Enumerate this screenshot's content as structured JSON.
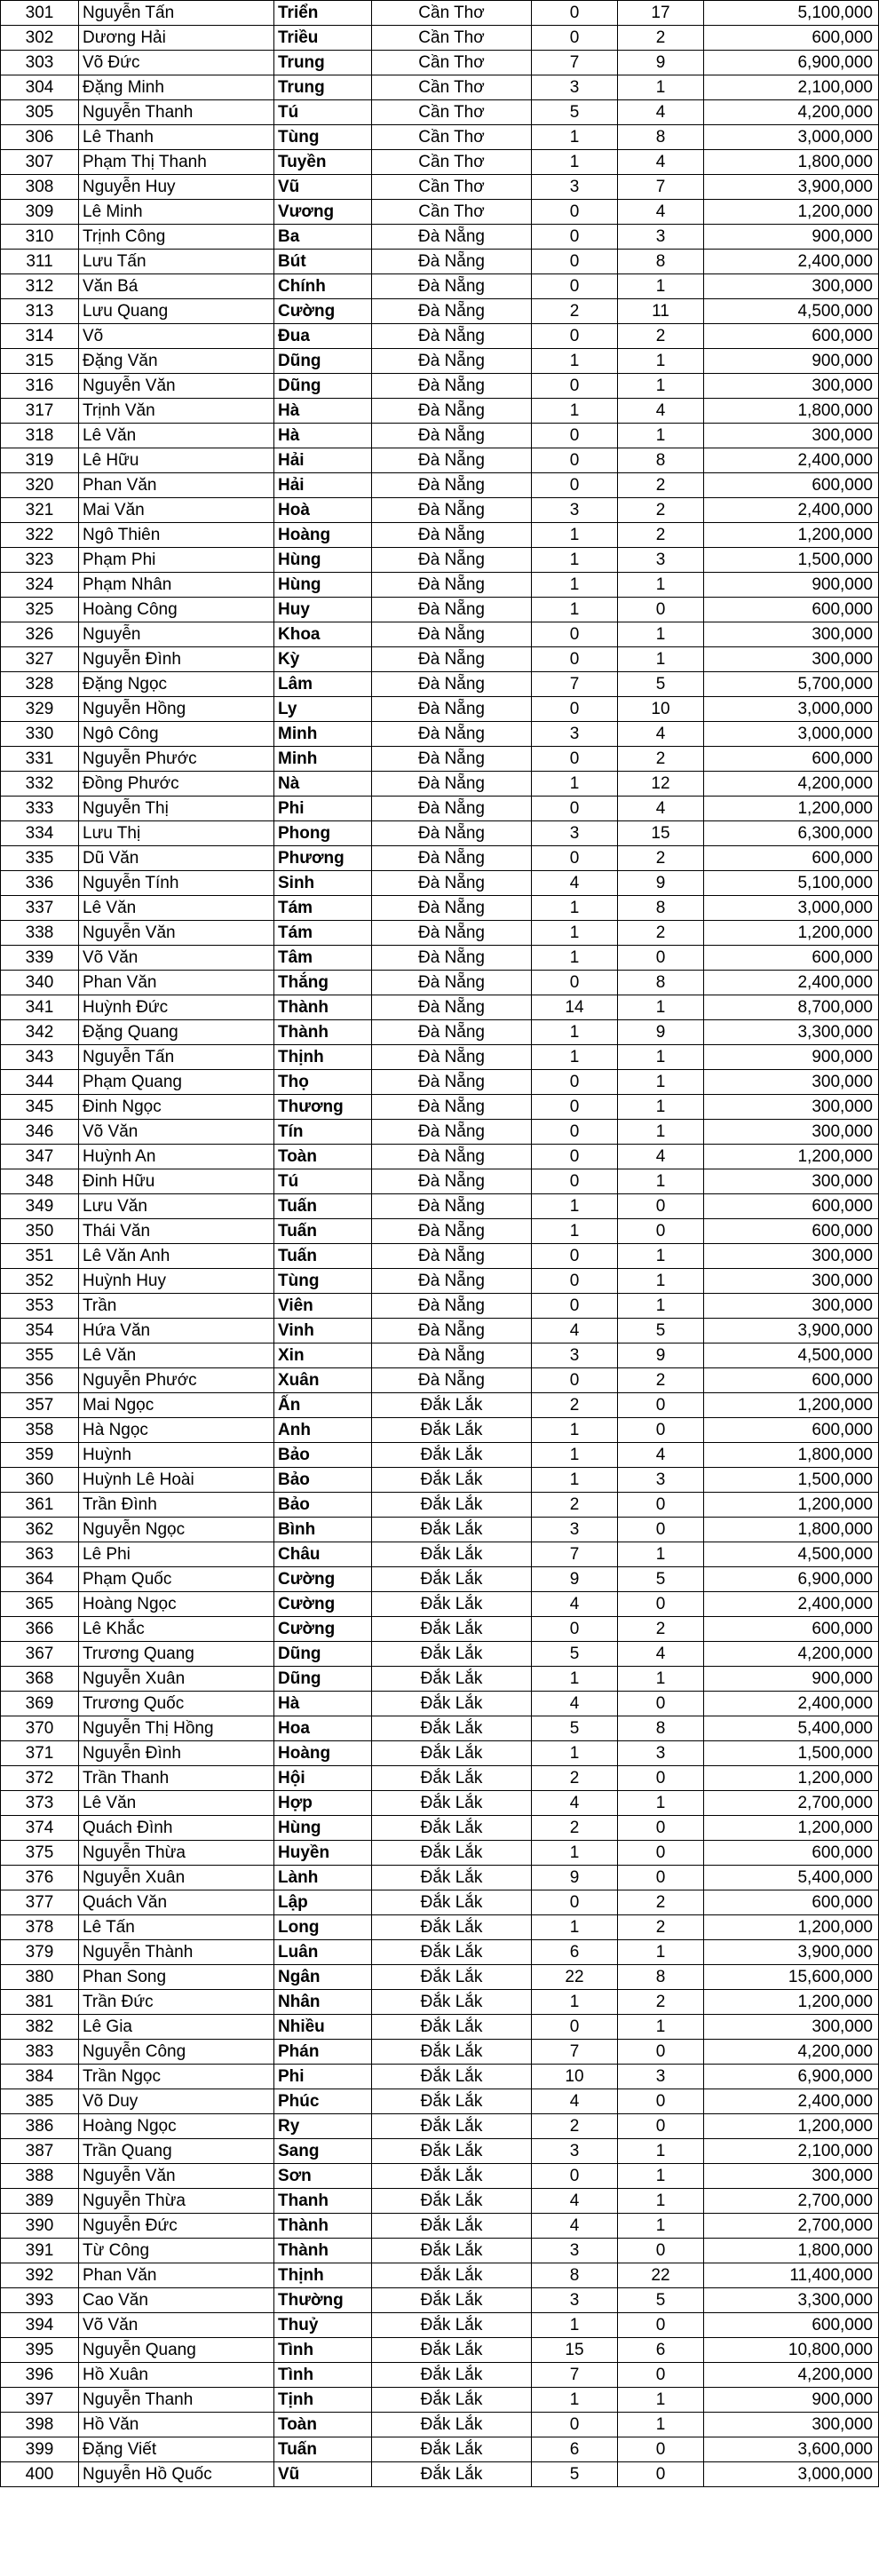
{
  "rows": [
    [
      "301",
      "Nguyễn Tấn",
      "Triển",
      "Cần Thơ",
      "0",
      "17",
      "5,100,000"
    ],
    [
      "302",
      "Dương Hải",
      "Triều",
      "Cần Thơ",
      "0",
      "2",
      "600,000"
    ],
    [
      "303",
      "Võ Đức",
      "Trung",
      "Cần Thơ",
      "7",
      "9",
      "6,900,000"
    ],
    [
      "304",
      "Đặng Minh",
      "Trung",
      "Cần Thơ",
      "3",
      "1",
      "2,100,000"
    ],
    [
      "305",
      "Nguyễn Thanh",
      "Tú",
      "Cần Thơ",
      "5",
      "4",
      "4,200,000"
    ],
    [
      "306",
      "Lê Thanh",
      "Tùng",
      "Cần Thơ",
      "1",
      "8",
      "3,000,000"
    ],
    [
      "307",
      "Phạm Thị Thanh",
      "Tuyền",
      "Cần Thơ",
      "1",
      "4",
      "1,800,000"
    ],
    [
      "308",
      "Nguyễn Huy",
      "Vũ",
      "Cần Thơ",
      "3",
      "7",
      "3,900,000"
    ],
    [
      "309",
      "Lê Minh",
      "Vương",
      "Cần Thơ",
      "0",
      "4",
      "1,200,000"
    ],
    [
      "310",
      "Trịnh Công",
      "Ba",
      "Đà Nẵng",
      "0",
      "3",
      "900,000"
    ],
    [
      "311",
      "Lưu Tấn",
      "Bút",
      "Đà Nẵng",
      "0",
      "8",
      "2,400,000"
    ],
    [
      "312",
      "Văn Bá",
      "Chính",
      "Đà Nẵng",
      "0",
      "1",
      "300,000"
    ],
    [
      "313",
      "Lưu Quang",
      "Cường",
      "Đà Nẵng",
      "2",
      "11",
      "4,500,000"
    ],
    [
      "314",
      "Võ",
      "Đua",
      "Đà Nẵng",
      "0",
      "2",
      "600,000"
    ],
    [
      "315",
      "Đặng Văn",
      "Dũng",
      "Đà Nẵng",
      "1",
      "1",
      "900,000"
    ],
    [
      "316",
      "Nguyễn Văn",
      "Dũng",
      "Đà Nẵng",
      "0",
      "1",
      "300,000"
    ],
    [
      "317",
      "Trịnh Văn",
      "Hà",
      "Đà Nẵng",
      "1",
      "4",
      "1,800,000"
    ],
    [
      "318",
      "Lê Văn",
      "Hà",
      "Đà Nẵng",
      "0",
      "1",
      "300,000"
    ],
    [
      "319",
      "Lê Hữu",
      "Hải",
      "Đà Nẵng",
      "0",
      "8",
      "2,400,000"
    ],
    [
      "320",
      "Phan Văn",
      "Hải",
      "Đà Nẵng",
      "0",
      "2",
      "600,000"
    ],
    [
      "321",
      "Mai Văn",
      "Hoà",
      "Đà Nẵng",
      "3",
      "2",
      "2,400,000"
    ],
    [
      "322",
      "Ngô Thiên",
      "Hoàng",
      "Đà Nẵng",
      "1",
      "2",
      "1,200,000"
    ],
    [
      "323",
      "Phạm Phi",
      "Hùng",
      "Đà Nẵng",
      "1",
      "3",
      "1,500,000"
    ],
    [
      "324",
      "Phạm Nhân",
      "Hùng",
      "Đà Nẵng",
      "1",
      "1",
      "900,000"
    ],
    [
      "325",
      "Hoàng Công",
      "Huy",
      "Đà Nẵng",
      "1",
      "0",
      "600,000"
    ],
    [
      "326",
      "Nguyễn",
      "Khoa",
      "Đà Nẵng",
      "0",
      "1",
      "300,000"
    ],
    [
      "327",
      "Nguyễn Đình",
      "Kỳ",
      "Đà Nẵng",
      "0",
      "1",
      "300,000"
    ],
    [
      "328",
      "Đặng Ngọc",
      "Lâm",
      "Đà Nẵng",
      "7",
      "5",
      "5,700,000"
    ],
    [
      "329",
      "Nguyễn Hồng",
      "Ly",
      "Đà Nẵng",
      "0",
      "10",
      "3,000,000"
    ],
    [
      "330",
      "Ngô Công",
      "Minh",
      "Đà Nẵng",
      "3",
      "4",
      "3,000,000"
    ],
    [
      "331",
      "Nguyễn Phước",
      "Minh",
      "Đà Nẵng",
      "0",
      "2",
      "600,000"
    ],
    [
      "332",
      "Đồng Phước",
      "Nà",
      "Đà Nẵng",
      "1",
      "12",
      "4,200,000"
    ],
    [
      "333",
      "Nguyễn Thị",
      "Phi",
      "Đà Nẵng",
      "0",
      "4",
      "1,200,000"
    ],
    [
      "334",
      "Lưu Thị",
      "Phong",
      "Đà Nẵng",
      "3",
      "15",
      "6,300,000"
    ],
    [
      "335",
      "Dũ Văn",
      "Phương",
      "Đà Nẵng",
      "0",
      "2",
      "600,000"
    ],
    [
      "336",
      "Nguyễn Tính",
      "Sinh",
      "Đà Nẵng",
      "4",
      "9",
      "5,100,000"
    ],
    [
      "337",
      "Lê Văn",
      "Tám",
      "Đà Nẵng",
      "1",
      "8",
      "3,000,000"
    ],
    [
      "338",
      "Nguyễn Văn",
      "Tám",
      "Đà Nẵng",
      "1",
      "2",
      "1,200,000"
    ],
    [
      "339",
      "Võ Văn",
      "Tâm",
      "Đà Nẵng",
      "1",
      "0",
      "600,000"
    ],
    [
      "340",
      "Phan Văn",
      "Thắng",
      "Đà Nẵng",
      "0",
      "8",
      "2,400,000"
    ],
    [
      "341",
      "Huỳnh Đức",
      "Thành",
      "Đà Nẵng",
      "14",
      "1",
      "8,700,000"
    ],
    [
      "342",
      "Đặng Quang",
      "Thành",
      "Đà Nẵng",
      "1",
      "9",
      "3,300,000"
    ],
    [
      "343",
      "Nguyễn Tấn",
      "Thịnh",
      "Đà Nẵng",
      "1",
      "1",
      "900,000"
    ],
    [
      "344",
      "Phạm Quang",
      "Thọ",
      "Đà Nẵng",
      "0",
      "1",
      "300,000"
    ],
    [
      "345",
      "Đinh Ngọc",
      "Thương",
      "Đà Nẵng",
      "0",
      "1",
      "300,000"
    ],
    [
      "346",
      "Võ Văn",
      "Tín",
      "Đà Nẵng",
      "0",
      "1",
      "300,000"
    ],
    [
      "347",
      "Huỳnh An",
      "Toàn",
      "Đà Nẵng",
      "0",
      "4",
      "1,200,000"
    ],
    [
      "348",
      "Đinh Hữu",
      "Tú",
      "Đà Nẵng",
      "0",
      "1",
      "300,000"
    ],
    [
      "349",
      "Lưu Văn",
      "Tuấn",
      "Đà Nẵng",
      "1",
      "0",
      "600,000"
    ],
    [
      "350",
      "Thái Văn",
      "Tuấn",
      "Đà Nẵng",
      "1",
      "0",
      "600,000"
    ],
    [
      "351",
      "Lê Văn Anh",
      "Tuấn",
      "Đà Nẵng",
      "0",
      "1",
      "300,000"
    ],
    [
      "352",
      "Huỳnh Huy",
      "Tùng",
      "Đà Nẵng",
      "0",
      "1",
      "300,000"
    ],
    [
      "353",
      "Trần",
      "Viên",
      "Đà Nẵng",
      "0",
      "1",
      "300,000"
    ],
    [
      "354",
      "Hứa Văn",
      "Vinh",
      "Đà Nẵng",
      "4",
      "5",
      "3,900,000"
    ],
    [
      "355",
      "Lê Văn",
      "Xin",
      "Đà Nẵng",
      "3",
      "9",
      "4,500,000"
    ],
    [
      "356",
      "Nguyễn Phước",
      "Xuân",
      "Đà Nẵng",
      "0",
      "2",
      "600,000"
    ],
    [
      "357",
      "Mai Ngọc",
      "Ấn",
      "Đắk Lắk",
      "2",
      "0",
      "1,200,000"
    ],
    [
      "358",
      "Hà Ngọc",
      "Anh",
      "Đắk Lắk",
      "1",
      "0",
      "600,000"
    ],
    [
      "359",
      "Huỳnh",
      "Bảo",
      "Đắk Lắk",
      "1",
      "4",
      "1,800,000"
    ],
    [
      "360",
      "Huỳnh Lê Hoài",
      "Bảo",
      "Đắk Lắk",
      "1",
      "3",
      "1,500,000"
    ],
    [
      "361",
      "Trần Đình",
      "Bảo",
      "Đắk Lắk",
      "2",
      "0",
      "1,200,000"
    ],
    [
      "362",
      "Nguyễn Ngọc",
      "Bình",
      "Đắk Lắk",
      "3",
      "0",
      "1,800,000"
    ],
    [
      "363",
      "Lê Phi",
      "Châu",
      "Đắk Lắk",
      "7",
      "1",
      "4,500,000"
    ],
    [
      "364",
      "Phạm Quốc",
      "Cường",
      "Đắk Lắk",
      "9",
      "5",
      "6,900,000"
    ],
    [
      "365",
      "Hoàng Ngọc",
      "Cường",
      "Đắk Lắk",
      "4",
      "0",
      "2,400,000"
    ],
    [
      "366",
      "Lê Khắc",
      "Cường",
      "Đắk Lắk",
      "0",
      "2",
      "600,000"
    ],
    [
      "367",
      "Trương Quang",
      "Dũng",
      "Đắk Lắk",
      "5",
      "4",
      "4,200,000"
    ],
    [
      "368",
      "Nguyễn Xuân",
      "Dũng",
      "Đắk Lắk",
      "1",
      "1",
      "900,000"
    ],
    [
      "369",
      "Trương Quốc",
      "Hà",
      "Đắk Lắk",
      "4",
      "0",
      "2,400,000"
    ],
    [
      "370",
      "Nguyễn Thị Hồng",
      "Hoa",
      "Đắk Lắk",
      "5",
      "8",
      "5,400,000"
    ],
    [
      "371",
      "Nguyễn Đình",
      "Hoàng",
      "Đắk Lắk",
      "1",
      "3",
      "1,500,000"
    ],
    [
      "372",
      "Trần Thanh",
      "Hội",
      "Đắk Lắk",
      "2",
      "0",
      "1,200,000"
    ],
    [
      "373",
      "Lê Văn",
      "Hợp",
      "Đắk Lắk",
      "4",
      "1",
      "2,700,000"
    ],
    [
      "374",
      "Quách Đình",
      "Hùng",
      "Đắk Lắk",
      "2",
      "0",
      "1,200,000"
    ],
    [
      "375",
      "Nguyễn Thừa",
      "Huyền",
      "Đắk Lắk",
      "1",
      "0",
      "600,000"
    ],
    [
      "376",
      "Nguyễn Xuân",
      "Lành",
      "Đắk Lắk",
      "9",
      "0",
      "5,400,000"
    ],
    [
      "377",
      "Quách Văn",
      "Lập",
      "Đắk Lắk",
      "0",
      "2",
      "600,000"
    ],
    [
      "378",
      "Lê Tấn",
      "Long",
      "Đắk Lắk",
      "1",
      "2",
      "1,200,000"
    ],
    [
      "379",
      "Nguyễn Thành",
      "Luân",
      "Đắk Lắk",
      "6",
      "1",
      "3,900,000"
    ],
    [
      "380",
      "Phan Song",
      "Ngân",
      "Đắk Lắk",
      "22",
      "8",
      "15,600,000"
    ],
    [
      "381",
      "Trần Đức",
      "Nhân",
      "Đắk Lắk",
      "1",
      "2",
      "1,200,000"
    ],
    [
      "382",
      "Lê Gia",
      "Nhiều",
      "Đắk Lắk",
      "0",
      "1",
      "300,000"
    ],
    [
      "383",
      "Nguyễn Công",
      "Phán",
      "Đắk Lắk",
      "7",
      "0",
      "4,200,000"
    ],
    [
      "384",
      "Trần Ngọc",
      "Phi",
      "Đắk Lắk",
      "10",
      "3",
      "6,900,000"
    ],
    [
      "385",
      "Võ Duy",
      "Phúc",
      "Đắk Lắk",
      "4",
      "0",
      "2,400,000"
    ],
    [
      "386",
      "Hoàng Ngọc",
      "Ry",
      "Đắk Lắk",
      "2",
      "0",
      "1,200,000"
    ],
    [
      "387",
      "Trần Quang",
      "Sang",
      "Đắk Lắk",
      "3",
      "1",
      "2,100,000"
    ],
    [
      "388",
      "Nguyễn Văn",
      "Sơn",
      "Đắk Lắk",
      "0",
      "1",
      "300,000"
    ],
    [
      "389",
      "Nguyễn Thừa",
      "Thanh",
      "Đắk Lắk",
      "4",
      "1",
      "2,700,000"
    ],
    [
      "390",
      "Nguyễn Đức",
      "Thành",
      "Đắk Lắk",
      "4",
      "1",
      "2,700,000"
    ],
    [
      "391",
      "Từ Công",
      "Thành",
      "Đắk Lắk",
      "3",
      "0",
      "1,800,000"
    ],
    [
      "392",
      "Phan Văn",
      "Thịnh",
      "Đắk Lắk",
      "8",
      "22",
      "11,400,000"
    ],
    [
      "393",
      "Cao Văn",
      "Thường",
      "Đắk Lắk",
      "3",
      "5",
      "3,300,000"
    ],
    [
      "394",
      "Võ Văn",
      "Thuỷ",
      "Đắk Lắk",
      "1",
      "0",
      "600,000"
    ],
    [
      "395",
      "Nguyễn Quang",
      "Tình",
      "Đắk Lắk",
      "15",
      "6",
      "10,800,000"
    ],
    [
      "396",
      "Hồ Xuân",
      "Tình",
      "Đắk Lắk",
      "7",
      "0",
      "4,200,000"
    ],
    [
      "397",
      "Nguyễn Thanh",
      "Tịnh",
      "Đắk Lắk",
      "1",
      "1",
      "900,000"
    ],
    [
      "398",
      "Hồ Văn",
      "Toàn",
      "Đắk Lắk",
      "0",
      "1",
      "300,000"
    ],
    [
      "399",
      "Đặng Viết",
      "Tuấn",
      "Đắk Lắk",
      "6",
      "0",
      "3,600,000"
    ],
    [
      "400",
      "Nguyễn Hồ Quốc",
      "Vũ",
      "Đắk Lắk",
      "5",
      "0",
      "3,000,000"
    ]
  ]
}
